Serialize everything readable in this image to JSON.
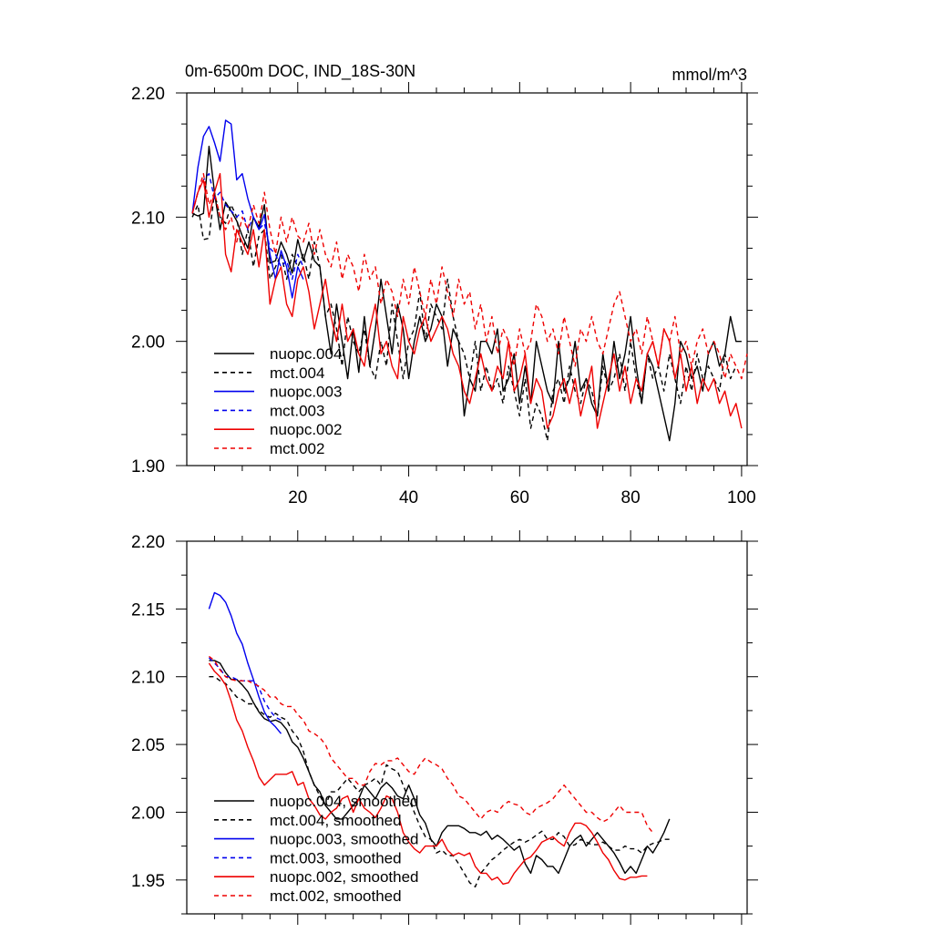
{
  "chart_data": [
    {
      "type": "line",
      "title": "0m-6500m DOC, IND_18S-30N",
      "units": "mmol/m^3",
      "xlim": [
        0,
        101
      ],
      "ylim": [
        1.9,
        2.2
      ],
      "x_ticks": [
        20,
        40,
        60,
        80,
        100
      ],
      "y_ticks": [
        1.9,
        2.0,
        2.1,
        2.2
      ],
      "y_tick_labels": [
        "1.90",
        "2.00",
        "2.10",
        "2.20"
      ],
      "x_tick_labels_shown": true,
      "legend_position": "bottom-left",
      "series": [
        {
          "name": "nuopc.004",
          "color": "#000000",
          "dash": "solid",
          "x_start": 1,
          "values": [
            2.103,
            2.101,
            2.103,
            2.157,
            2.12,
            2.09,
            2.112,
            2.105,
            2.097,
            2.085,
            2.075,
            2.1,
            2.092,
            2.11,
            2.063,
            2.065,
            2.08,
            2.07,
            2.055,
            2.082,
            2.065,
            2.08,
            2.065,
            2.06,
            2.02,
            1.99,
            2.03,
            2.0,
            1.97,
            2.01,
            1.975,
            2.02,
            1.98,
            2.01,
            2.05,
            2.02,
            1.99,
            2.03,
            2.01,
            1.97,
            2.0,
            2.02,
            2.0,
            2.01,
            2.03,
            2.02,
            1.98,
            2.01,
            2.0,
            1.94,
            1.97,
            1.96,
            2.0,
            2.0,
            1.99,
            2.01,
            1.96,
            1.97,
            1.99,
            1.95,
            1.98,
            1.95,
            2.0,
            1.98,
            1.96,
            1.95,
            2.0,
            1.96,
            1.97,
            2.0,
            1.96,
            1.97,
            1.95,
            1.94,
            1.99,
            1.96,
            2.0,
            1.97,
            1.99,
            2.02,
            1.98,
            1.95,
            1.99,
            1.98,
            1.96,
            1.94,
            1.92,
            1.95,
            2.0,
            1.99,
            1.97,
            1.98,
            1.96,
            1.99,
            2.0,
            1.98,
            1.99,
            2.02,
            2.0,
            2.0
          ]
        },
        {
          "name": "mct.004",
          "color": "#000000",
          "dash": "dashed",
          "x_start": 1,
          "values": [
            2.1,
            2.11,
            2.082,
            2.083,
            2.12,
            2.1,
            2.095,
            2.11,
            2.1,
            2.07,
            2.09,
            2.06,
            2.085,
            2.09,
            2.05,
            2.06,
            2.07,
            2.05,
            2.07,
            2.06,
            2.07,
            2.05,
            2.08,
            2.06,
            2.02,
            2.03,
            2.01,
            1.98,
            2.02,
            2.0,
            1.99,
            2.01,
            1.98,
            1.97,
            2.0,
            1.98,
            2.03,
            2.0,
            1.97,
            2.0,
            2.01,
            2.04,
            2.0,
            2.03,
            2.02,
            2.01,
            2.05,
            2.02,
            2.0,
            1.99,
            1.97,
            2.0,
            1.96,
            1.98,
            1.96,
            1.97,
            1.95,
            1.98,
            1.96,
            1.94,
            1.97,
            1.93,
            1.95,
            1.94,
            1.92,
            1.96,
            1.97,
            1.95,
            1.98,
            1.96,
            1.95,
            1.97,
            1.96,
            1.94,
            1.98,
            1.96,
            1.97,
            1.99,
            1.96,
            2.0,
            1.97,
            1.95,
            1.99,
            1.97,
            1.98,
            1.96,
            1.99,
            1.97,
            1.95,
            1.98,
            1.96,
            1.99,
            1.97,
            1.98,
            1.97,
            1.96,
            1.99,
            1.97,
            1.98
          ]
        },
        {
          "name": "nuopc.003",
          "color": "#0000ee",
          "dash": "solid",
          "x_start": 1,
          "values": [
            2.103,
            2.14,
            2.165,
            2.173,
            2.16,
            2.145,
            2.178,
            2.175,
            2.13,
            2.135,
            2.115,
            2.1,
            2.09,
            2.102,
            2.07,
            2.05,
            2.073,
            2.06,
            2.035,
            2.06,
            2.05
          ]
        },
        {
          "name": "mct.003",
          "color": "#0000ee",
          "dash": "dashed",
          "x_start": 1,
          "values": [
            2.103,
            2.12,
            2.13,
            2.135,
            2.115,
            2.12,
            2.11,
            2.105,
            2.1,
            2.105,
            2.09,
            2.1,
            2.09,
            2.095,
            2.075,
            2.07,
            2.06,
            2.065,
            2.05,
            2.07,
            2.06
          ]
        },
        {
          "name": "nuopc.002",
          "color": "#ee0000",
          "dash": "solid",
          "x_start": 1,
          "values": [
            2.103,
            2.12,
            2.13,
            2.1,
            2.12,
            2.135,
            2.07,
            2.056,
            2.09,
            2.08,
            2.07,
            2.09,
            2.06,
            2.09,
            2.03,
            2.05,
            2.06,
            2.03,
            2.02,
            2.05,
            2.06,
            2.04,
            2.01,
            2.03,
            2.05,
            2.02,
            2.0,
            2.03,
            2.0,
            2.01,
            1.99,
            1.98,
            2.01,
            2.03,
            1.99,
            2.0,
            1.98,
            1.97,
            2.02,
            2.0,
            1.99,
            2.01,
            2.02,
            2.0,
            2.01,
            2.02,
            2.01,
            1.99,
            1.98,
            1.96,
            1.95,
            1.97,
            1.99,
            1.97,
            1.96,
            1.98,
            1.97,
            2.0,
            1.96,
            1.97,
            1.99,
            1.95,
            1.97,
            1.96,
            1.93,
            1.94,
            1.96,
            1.97,
            1.95,
            1.97,
            1.94,
            1.96,
            1.98,
            1.93,
            1.95,
            1.97,
            1.99,
            1.96,
            1.98,
            1.95,
            1.97,
            1.96,
            1.99,
            2.0,
            1.98,
            2.01,
            2.0,
            1.97,
            1.99,
            1.96,
            1.98,
            1.95,
            1.97,
            1.96,
            1.97,
            1.95,
            1.96,
            1.94,
            1.95,
            1.93
          ]
        },
        {
          "name": "mct.002",
          "color": "#ee0000",
          "dash": "dashed",
          "x_start": 1,
          "values": [
            2.103,
            2.12,
            2.135,
            2.11,
            2.12,
            2.1,
            2.09,
            2.1,
            2.08,
            2.1,
            2.09,
            2.11,
            2.095,
            2.12,
            2.09,
            2.07,
            2.1,
            2.08,
            2.1,
            2.085,
            2.08,
            2.095,
            2.07,
            2.09,
            2.07,
            2.06,
            2.08,
            2.05,
            2.07,
            2.06,
            2.04,
            2.07,
            2.05,
            2.06,
            2.03,
            2.05,
            2.04,
            2.02,
            2.05,
            2.03,
            2.06,
            2.04,
            2.02,
            2.05,
            2.03,
            2.06,
            2.04,
            2.02,
            2.05,
            2.03,
            2.04,
            2.01,
            2.03,
            2.0,
            2.02,
            1.99,
            2.01,
            2.0,
            1.98,
            2.01,
            1.99,
            2.0,
            2.03,
            2.02,
            2.0,
            2.01,
            1.99,
            2.02,
            2.0,
            1.98,
            2.01,
            2.0,
            2.02,
            2.0,
            1.99,
            2.01,
            2.03,
            2.04,
            2.02,
            2.0,
            2.01,
            1.99,
            2.02,
            2.0,
            1.98,
            2.01,
            2.0,
            2.02,
            1.99,
            2.0,
            1.98,
            2.0,
            2.01,
            1.99,
            2.0,
            1.99,
            1.97,
            1.99,
            1.98,
            1.97,
            1.99
          ]
        }
      ],
      "legend": [
        "nuopc.004",
        "mct.004",
        "nuopc.003",
        "mct.003",
        "nuopc.002",
        "mct.002"
      ]
    },
    {
      "type": "line",
      "title": "",
      "xlim": [
        0,
        101
      ],
      "ylim": [
        1.925,
        2.2
      ],
      "x_ticks": [
        20,
        40,
        60,
        80,
        100
      ],
      "y_ticks": [
        1.95,
        2.0,
        2.05,
        2.1,
        2.15,
        2.2
      ],
      "y_tick_labels": [
        "1.95",
        "2.00",
        "2.05",
        "2.10",
        "2.15",
        "2.20"
      ],
      "x_tick_labels_shown": false,
      "legend_position": "bottom-left",
      "series": [
        {
          "name": "nuopc.004, smoothed",
          "color": "#000000",
          "dash": "solid",
          "x_start": 4,
          "values": [
            2.112,
            2.112,
            2.11,
            2.103,
            2.098,
            2.098,
            2.094,
            2.089,
            2.081,
            2.074,
            2.069,
            2.067,
            2.068,
            2.066,
            2.061,
            2.052,
            2.048,
            2.04,
            2.03,
            2.02,
            2.015,
            2.005,
            2.0,
            1.995,
            1.995,
            2.0,
            2.005,
            2.01,
            2.02,
            2.015,
            2.01,
            2.018,
            2.022,
            2.018,
            2.012,
            2.01,
            2.02,
            2.01,
            1.998,
            1.992,
            1.98,
            1.975,
            1.985,
            1.99,
            1.99,
            1.99,
            1.988,
            1.985,
            1.985,
            1.983,
            1.986,
            1.98,
            1.983,
            1.98,
            1.976,
            1.972,
            1.975,
            1.962,
            1.955,
            1.968,
            1.965,
            1.96,
            1.96,
            1.955,
            1.965,
            1.975,
            1.98,
            1.983,
            1.975,
            1.98,
            1.985,
            1.98,
            1.975,
            1.97,
            1.963,
            1.955,
            1.96,
            1.955,
            1.965,
            1.975,
            1.97,
            1.977,
            1.985,
            1.995
          ]
        },
        {
          "name": "mct.004, smoothed",
          "color": "#000000",
          "dash": "dashed",
          "x_start": 4,
          "values": [
            2.1,
            2.1,
            2.097,
            2.095,
            2.09,
            2.085,
            2.083,
            2.08,
            2.08,
            2.075,
            2.072,
            2.07,
            2.073,
            2.07,
            2.068,
            2.06,
            2.055,
            2.045,
            2.03,
            2.02,
            2.012,
            2.005,
            2.015,
            2.015,
            2.02,
            2.025,
            2.02,
            2.015,
            2.02,
            2.022,
            2.025,
            2.02,
            2.035,
            2.032,
            2.03,
            2.02,
            2.01,
            2.0,
            1.99,
            1.982,
            1.98,
            1.97,
            1.972,
            1.968,
            1.968,
            1.962,
            1.955,
            1.948,
            1.945,
            1.955,
            1.96,
            1.965,
            1.968,
            1.972,
            1.975,
            1.978,
            1.98,
            1.978,
            1.98,
            1.983,
            1.986,
            1.98,
            1.98,
            1.985,
            1.982,
            1.975,
            1.976,
            1.98,
            1.978,
            1.976,
            1.976,
            1.978,
            1.975,
            1.972,
            1.972,
            1.975,
            1.973,
            1.973,
            1.97,
            1.975,
            1.977,
            1.978,
            1.98,
            1.98
          ]
        },
        {
          "name": "nuopc.003, smoothed",
          "color": "#0000ee",
          "dash": "solid",
          "x_start": 4,
          "values": [
            2.15,
            2.162,
            2.16,
            2.155,
            2.145,
            2.132,
            2.124,
            2.11,
            2.098,
            2.085,
            2.074,
            2.067,
            2.063,
            2.058
          ]
        },
        {
          "name": "mct.003, smoothed",
          "color": "#0000ee",
          "dash": "dashed",
          "x_start": 4,
          "values": [
            2.114,
            2.11,
            2.106,
            2.1,
            2.1,
            2.098,
            2.097,
            2.097,
            2.097,
            2.092,
            2.082,
            2.075,
            2.07,
            2.068
          ]
        },
        {
          "name": "nuopc.002, smoothed",
          "color": "#ee0000",
          "dash": "solid",
          "x_start": 4,
          "values": [
            2.11,
            2.104,
            2.1,
            2.094,
            2.082,
            2.068,
            2.06,
            2.048,
            2.038,
            2.026,
            2.02,
            2.024,
            2.028,
            2.028,
            2.028,
            2.03,
            2.02,
            2.022,
            2.01,
            2.005,
            1.998,
            1.995,
            2.0,
            2.003,
            2.01,
            2.012,
            2.0,
            2.01,
            2.003,
            2.0,
            1.996,
            2.003,
            2.012,
            2.01,
            2.0,
            1.985,
            1.978,
            1.973,
            1.97,
            1.975,
            1.975,
            1.975,
            1.98,
            1.972,
            1.968,
            1.97,
            1.968,
            1.97,
            1.96,
            1.955,
            1.955,
            1.95,
            1.952,
            1.947,
            1.948,
            1.955,
            1.96,
            1.965,
            1.967,
            1.972,
            1.978,
            1.98,
            1.982,
            1.978,
            1.975,
            1.985,
            1.992,
            1.992,
            1.99,
            1.985,
            1.978,
            1.97,
            1.965,
            1.957,
            1.951,
            1.95,
            1.952,
            1.952,
            1.953,
            1.953
          ]
        },
        {
          "name": "mct.002, smoothed",
          "color": "#ee0000",
          "dash": "dashed",
          "x_start": 4,
          "values": [
            2.115,
            2.112,
            2.105,
            2.1,
            2.098,
            2.097,
            2.097,
            2.097,
            2.095,
            2.093,
            2.09,
            2.085,
            2.085,
            2.08,
            2.078,
            2.078,
            2.072,
            2.068,
            2.06,
            2.058,
            2.055,
            2.05,
            2.04,
            2.035,
            2.03,
            2.025,
            2.025,
            2.02,
            2.02,
            2.03,
            2.036,
            2.035,
            2.038,
            2.038,
            2.04,
            2.035,
            2.03,
            2.028,
            2.035,
            2.04,
            2.037,
            2.035,
            2.032,
            2.025,
            2.02,
            2.012,
            2.01,
            2.005,
            2.0,
            1.995,
            2.0,
            2.002,
            2.0,
            2.005,
            2.008,
            2.006,
            2.005,
            2.0,
            1.998,
            2.003,
            2.005,
            2.007,
            2.01,
            2.015,
            2.02,
            2.015,
            2.01,
            2.005,
            2.0,
            2.0,
            1.996,
            1.993,
            1.995,
            2.0,
            2.005,
            2.0,
            2.0,
            2.0,
            2.0,
            1.99,
            1.985
          ]
        }
      ],
      "legend": [
        "nuopc.004, smoothed",
        "mct.004, smoothed",
        "nuopc.003, smoothed",
        "mct.003, smoothed",
        "nuopc.002, smoothed",
        "mct.002, smoothed"
      ]
    }
  ]
}
